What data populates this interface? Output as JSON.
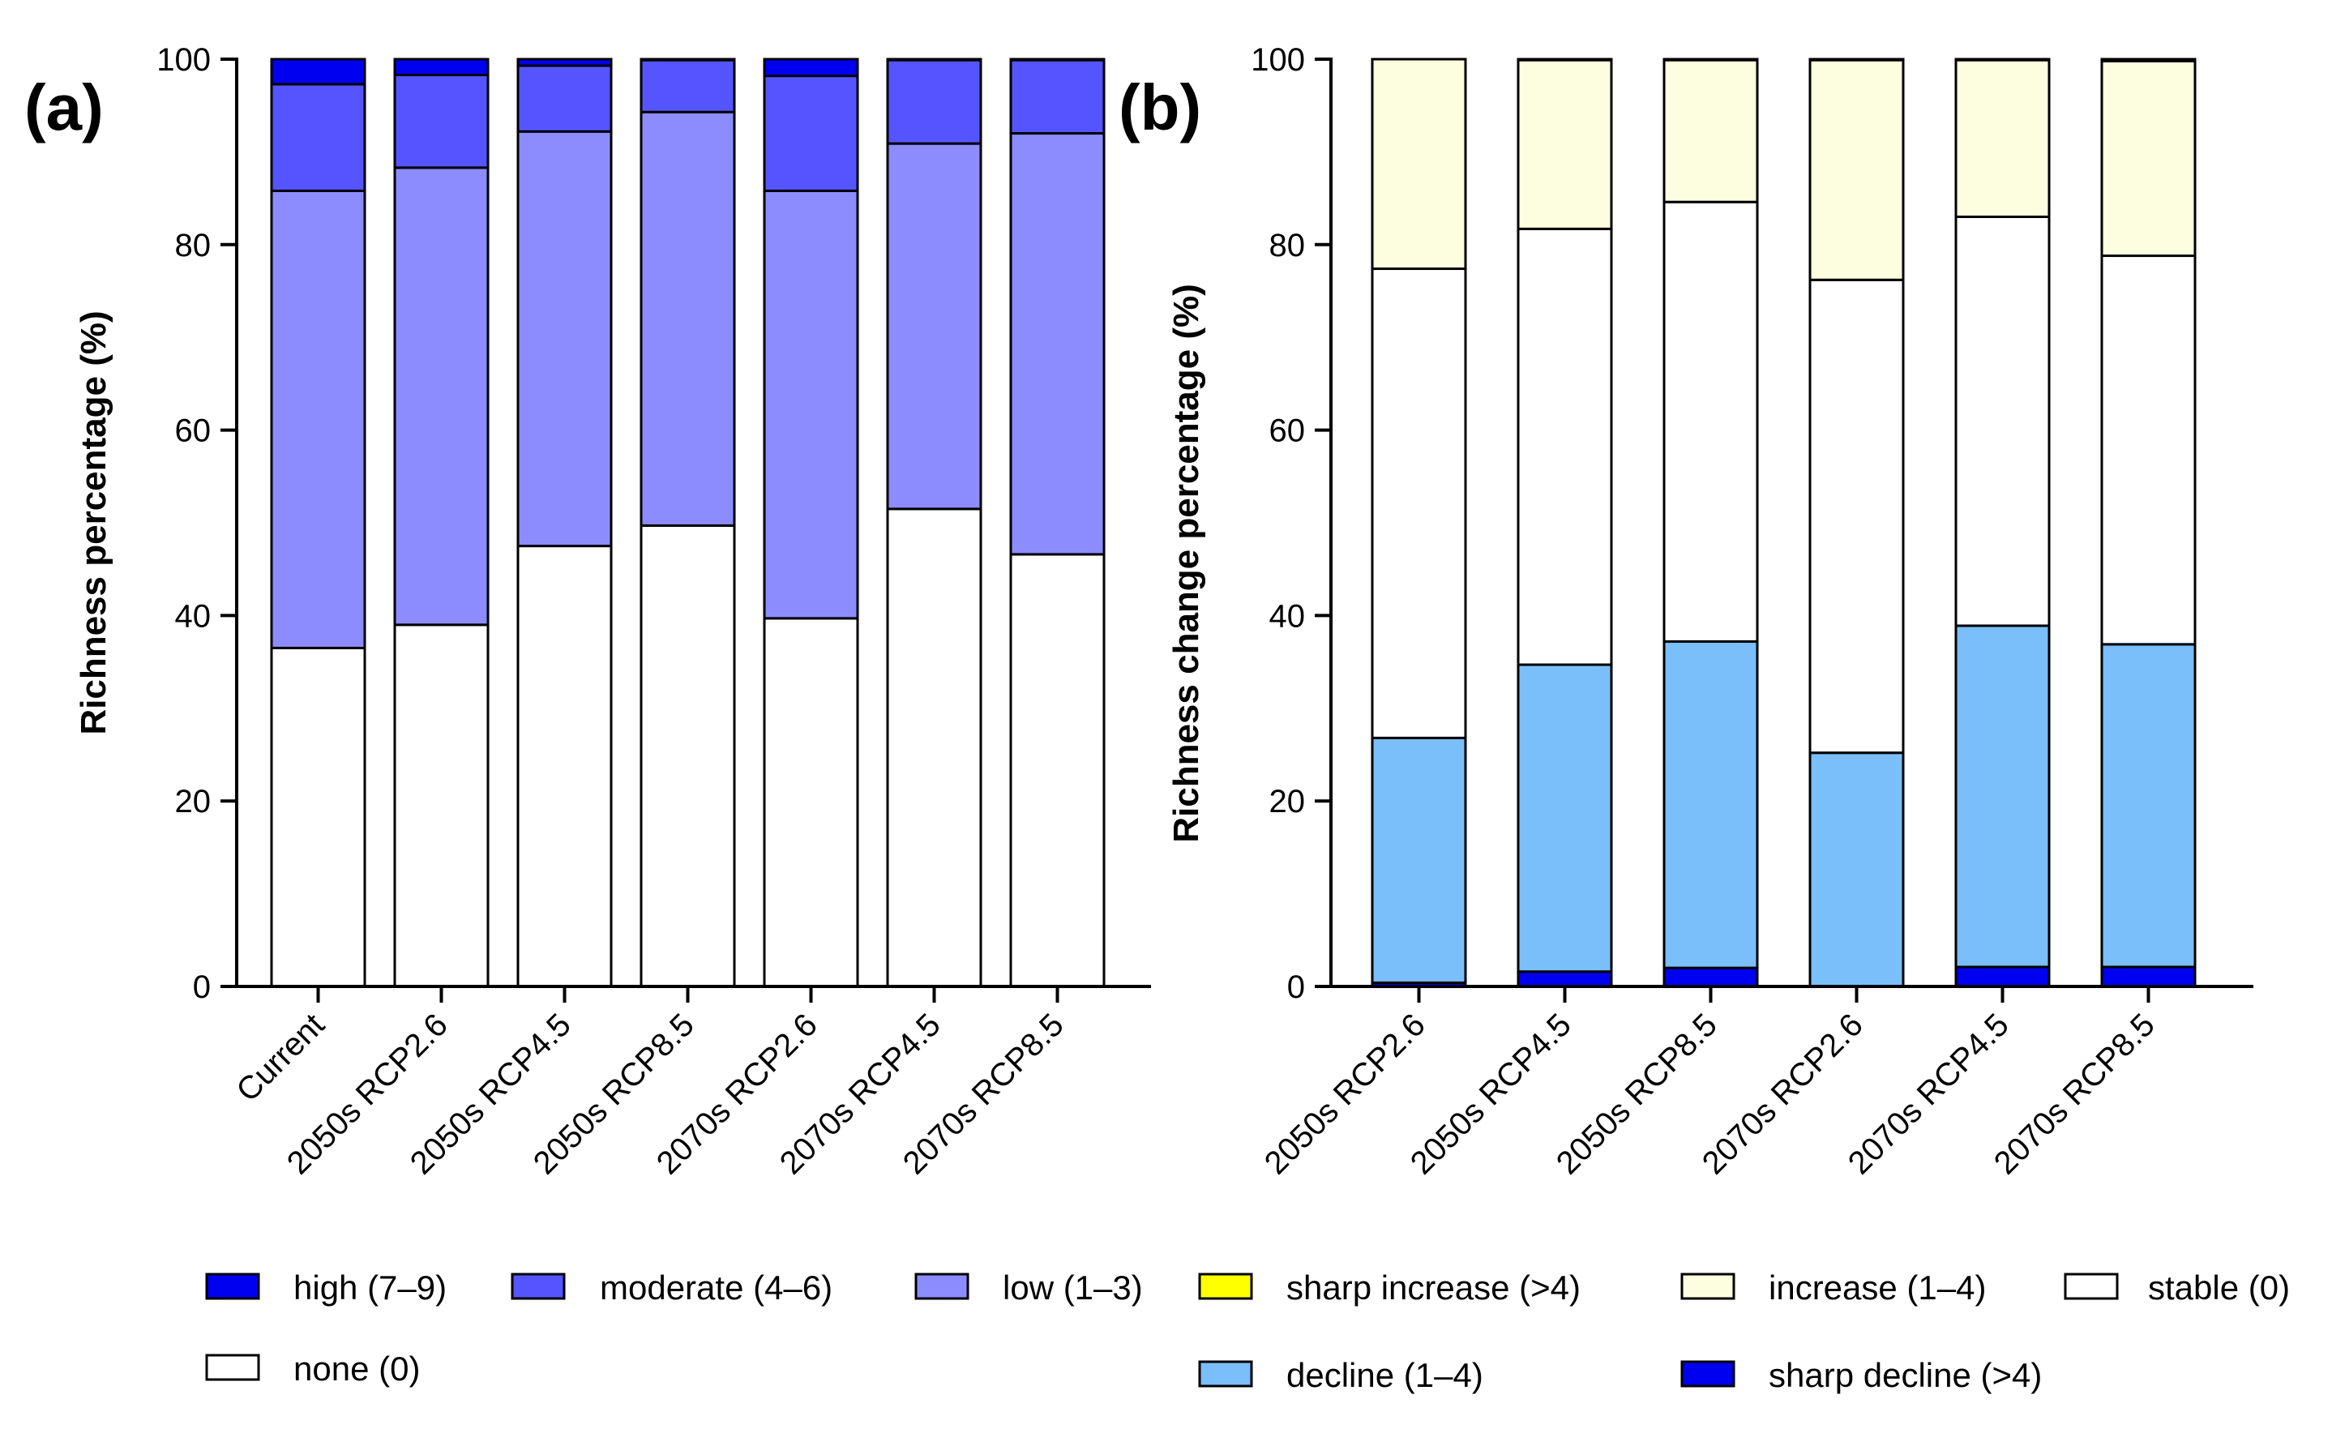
{
  "chart_data": [
    {
      "type": "bar",
      "stacked": true,
      "panel": "(a)",
      "ylabel": "Richness percentage (%)",
      "xlabel": "",
      "ylim": [
        0,
        100
      ],
      "yticks": [
        "0",
        "20",
        "40",
        "60",
        "80",
        "100"
      ],
      "categories": [
        "Current",
        "2050s RCP2.6",
        "2050s RCP4.5",
        "2050s RCP8.5",
        "2070s RCP2.6",
        "2070s RCP4.5",
        "2070s RCP8.5"
      ],
      "series": [
        {
          "name": "none (0)",
          "color": "#ffffff",
          "values": [
            36.5,
            39.0,
            47.5,
            49.7,
            39.7,
            51.5,
            46.6
          ]
        },
        {
          "name": "low (1–3)",
          "color": "#8c8cff",
          "values": [
            49.3,
            49.3,
            44.7,
            44.6,
            46.1,
            39.4,
            45.4
          ]
        },
        {
          "name": "moderate (4–6)",
          "color": "#5555ff",
          "values": [
            11.5,
            10.0,
            7.1,
            5.6,
            12.4,
            9.0,
            7.9
          ]
        },
        {
          "name": "high (7–9)",
          "color": "#0000f0",
          "values": [
            2.7,
            1.7,
            0.7,
            0.1,
            1.8,
            0.1,
            0.1
          ]
        }
      ]
    },
    {
      "type": "bar",
      "stacked": true,
      "panel": "(b)",
      "ylabel": "Richness change percentage (%)",
      "xlabel": "",
      "ylim": [
        0,
        100
      ],
      "yticks": [
        "0",
        "20",
        "40",
        "60",
        "80",
        "100"
      ],
      "categories": [
        "2050s RCP2.6",
        "2050s RCP4.5",
        "2050s RCP8.5",
        "2070s RCP2.6",
        "2070s RCP4.5",
        "2070s RCP8.5"
      ],
      "series": [
        {
          "name": "sharp decline (>4)",
          "color": "#0000f0",
          "values": [
            0.4,
            1.6,
            2.0,
            0.0,
            2.1,
            2.1
          ]
        },
        {
          "name": "decline (1–4)",
          "color": "#7abefa",
          "values": [
            26.4,
            33.1,
            35.2,
            25.2,
            36.8,
            34.8
          ]
        },
        {
          "name": "stable (0)",
          "color": "#ffffff",
          "values": [
            50.6,
            47.0,
            47.4,
            51.0,
            44.1,
            41.9
          ]
        },
        {
          "name": "increase (1–4)",
          "color": "#fdfde0",
          "values": [
            22.6,
            18.2,
            15.3,
            23.7,
            16.9,
            21.0
          ]
        },
        {
          "name": "sharp increase (>4)",
          "color": "#ffff00",
          "values": [
            0.0,
            0.1,
            0.1,
            0.1,
            0.1,
            0.2
          ]
        }
      ]
    }
  ],
  "legend": {
    "a_items": [
      {
        "label": "high (7–9)",
        "color": "#0000f0"
      },
      {
        "label": "moderate (4–6)",
        "color": "#5555ff"
      },
      {
        "label": "low (1–3)",
        "color": "#8c8cff"
      },
      {
        "label": "none (0)",
        "color": "#ffffff"
      }
    ],
    "b_items": [
      {
        "label": "sharp increase (>4)",
        "color": "#ffff00"
      },
      {
        "label": "increase (1–4)",
        "color": "#fdfde0"
      },
      {
        "label": "stable (0)",
        "color": "#ffffff"
      },
      {
        "label": "decline (1–4)",
        "color": "#7abefa"
      },
      {
        "label": "sharp decline (>4)",
        "color": "#0000f0"
      }
    ]
  }
}
